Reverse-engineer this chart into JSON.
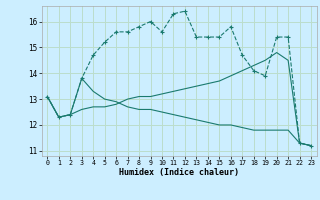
{
  "title": "",
  "xlabel": "Humidex (Indice chaleur)",
  "background_color": "#cceeff",
  "grid_color": "#bbddcc",
  "line_color": "#1a7a6e",
  "xlim": [
    -0.5,
    23.5
  ],
  "ylim": [
    10.8,
    16.6
  ],
  "yticks": [
    11,
    12,
    13,
    14,
    15,
    16
  ],
  "xticks": [
    0,
    1,
    2,
    3,
    4,
    5,
    6,
    7,
    8,
    9,
    10,
    11,
    12,
    13,
    14,
    15,
    16,
    17,
    18,
    19,
    20,
    21,
    22,
    23
  ],
  "line1": [
    13.1,
    12.3,
    12.4,
    13.8,
    14.7,
    15.2,
    15.6,
    15.6,
    15.8,
    16.0,
    15.6,
    16.3,
    16.4,
    15.4,
    15.4,
    15.4,
    15.8,
    14.7,
    14.1,
    13.9,
    15.4,
    15.4,
    11.3,
    11.2
  ],
  "line2": [
    13.1,
    12.3,
    12.4,
    12.6,
    12.7,
    12.7,
    12.8,
    13.0,
    13.1,
    13.1,
    13.2,
    13.3,
    13.4,
    13.5,
    13.6,
    13.7,
    13.9,
    14.1,
    14.3,
    14.5,
    14.8,
    14.5,
    11.3,
    11.2
  ],
  "line3": [
    13.1,
    12.3,
    12.4,
    13.8,
    13.3,
    13.0,
    12.9,
    12.7,
    12.6,
    12.6,
    12.5,
    12.4,
    12.3,
    12.2,
    12.1,
    12.0,
    12.0,
    11.9,
    11.8,
    11.8,
    11.8,
    11.8,
    11.3,
    11.2
  ]
}
